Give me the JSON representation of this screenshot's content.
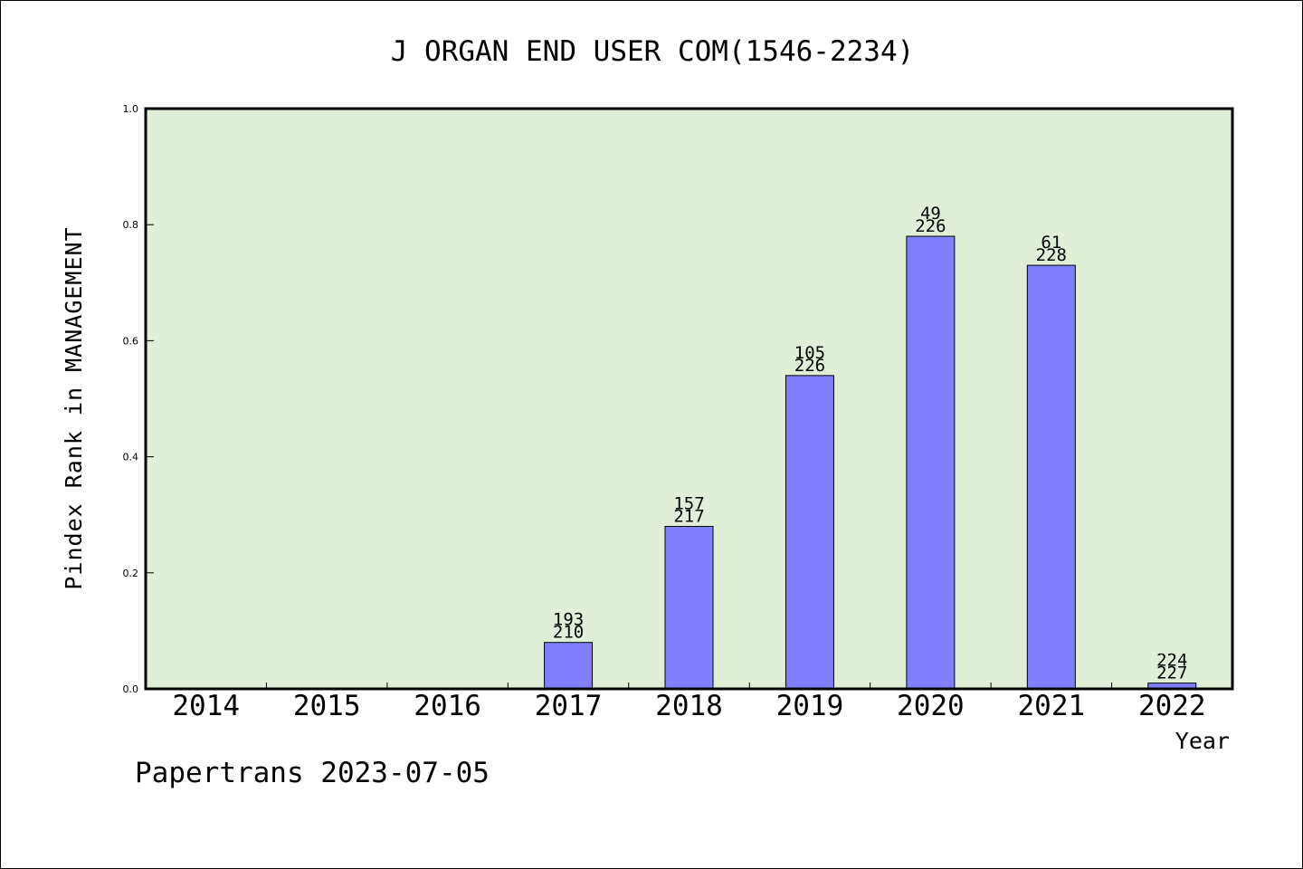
{
  "colors": {
    "plot_background": "#e1efd6",
    "bar_fill": "#8080ff",
    "bar_stroke": "#000000",
    "axis": "#000000"
  },
  "footer": {
    "text": "Papertrans 2023-07-05"
  },
  "chart_data": {
    "type": "bar",
    "title": "J ORGAN END USER COM(1546-2234)",
    "xlabel": "Year",
    "ylabel": "Pindex Rank in MANAGEMENT",
    "ylim": [
      0,
      1.0
    ],
    "yticks": [
      "0.0",
      "0.2",
      "0.4",
      "0.6",
      "0.8",
      "1.0"
    ],
    "categories": [
      "2014",
      "2015",
      "2016",
      "2017",
      "2018",
      "2019",
      "2020",
      "2021",
      "2022"
    ],
    "values": [
      0,
      0,
      0,
      0.08,
      0.28,
      0.54,
      0.78,
      0.73,
      0.01
    ],
    "bar_labels": [
      null,
      null,
      null,
      [
        "193",
        "210"
      ],
      [
        "157",
        "217"
      ],
      [
        "105",
        "226"
      ],
      [
        "49",
        "226"
      ],
      [
        "61",
        "228"
      ],
      [
        "224",
        "227"
      ]
    ],
    "grid": false,
    "legend": "none"
  }
}
